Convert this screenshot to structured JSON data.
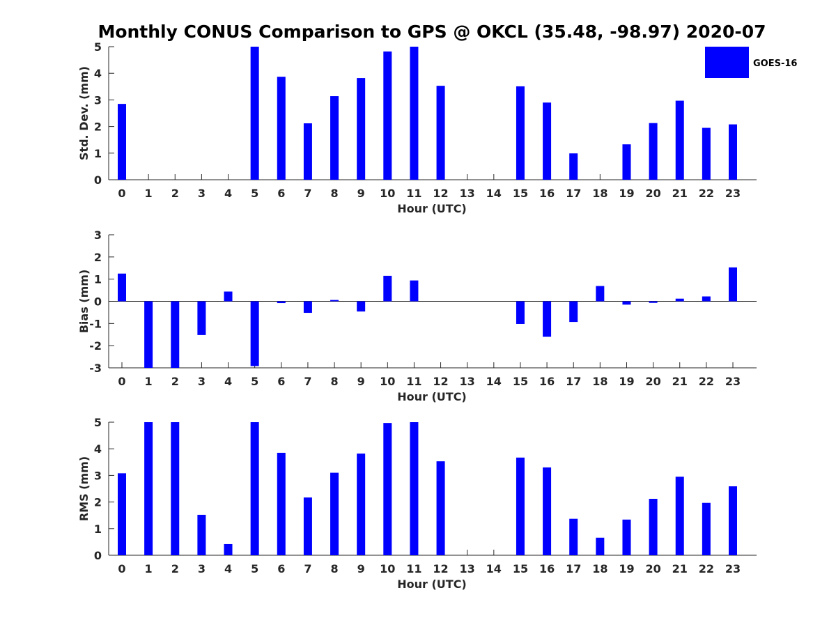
{
  "title": "Monthly CONUS Comparison to GPS @ OKCL (35.48, -98.97) 2020-07",
  "series_color": "#0000ff",
  "legend": {
    "label": "GOES-16"
  },
  "chart_data": [
    {
      "type": "bar",
      "name": "std-dev",
      "xlabel": "Hour (UTC)",
      "ylabel": "Std. Dev. (mm)",
      "ylim": [
        0,
        5
      ],
      "yticks": [
        0,
        1,
        2,
        3,
        4,
        5
      ],
      "categories": [
        "0",
        "1",
        "2",
        "3",
        "4",
        "5",
        "6",
        "7",
        "8",
        "9",
        "10",
        "11",
        "12",
        "13",
        "14",
        "15",
        "16",
        "17",
        "18",
        "19",
        "20",
        "21",
        "22",
        "23"
      ],
      "series": [
        {
          "name": "GOES-16",
          "values": [
            2.85,
            null,
            null,
            null,
            null,
            5.0,
            3.87,
            2.12,
            3.14,
            3.82,
            4.82,
            5.0,
            3.53,
            null,
            null,
            3.51,
            2.9,
            0.99,
            null,
            1.33,
            2.13,
            2.97,
            1.95,
            2.08
          ]
        }
      ]
    },
    {
      "type": "bar",
      "name": "bias",
      "xlabel": "Hour (UTC)",
      "ylabel": "Bias (mm)",
      "ylim": [
        -3,
        3
      ],
      "yticks": [
        -3,
        -2,
        -1,
        0,
        1,
        2,
        3
      ],
      "categories": [
        "0",
        "1",
        "2",
        "3",
        "4",
        "5",
        "6",
        "7",
        "8",
        "9",
        "10",
        "11",
        "12",
        "13",
        "14",
        "15",
        "16",
        "17",
        "18",
        "19",
        "20",
        "21",
        "22",
        "23"
      ],
      "series": [
        {
          "name": "GOES-16",
          "values": [
            1.25,
            -3.0,
            -3.0,
            -1.52,
            0.44,
            -2.92,
            -0.08,
            -0.52,
            0.06,
            -0.46,
            1.15,
            0.94,
            null,
            null,
            null,
            -1.02,
            -1.6,
            -0.93,
            0.69,
            -0.15,
            -0.07,
            0.12,
            0.22,
            1.53
          ]
        }
      ]
    },
    {
      "type": "bar",
      "name": "rms",
      "xlabel": "Hour (UTC)",
      "ylabel": "RMS (mm)",
      "ylim": [
        0,
        5
      ],
      "yticks": [
        0,
        1,
        2,
        3,
        4,
        5
      ],
      "categories": [
        "0",
        "1",
        "2",
        "3",
        "4",
        "5",
        "6",
        "7",
        "8",
        "9",
        "10",
        "11",
        "12",
        "13",
        "14",
        "15",
        "16",
        "17",
        "18",
        "19",
        "20",
        "21",
        "22",
        "23"
      ],
      "series": [
        {
          "name": "GOES-16",
          "values": [
            3.08,
            5.0,
            5.0,
            1.52,
            0.42,
            5.0,
            3.85,
            2.17,
            3.1,
            3.82,
            4.97,
            5.0,
            3.53,
            null,
            null,
            3.67,
            3.3,
            1.37,
            0.66,
            1.34,
            2.12,
            2.95,
            1.97,
            2.59
          ]
        }
      ]
    }
  ]
}
